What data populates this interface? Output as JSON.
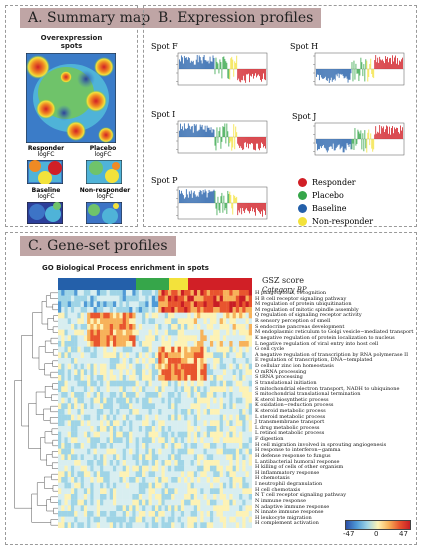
{
  "panel_a": {
    "header": "A. Summary map",
    "title_line1": "Overexpression",
    "title_line2": "spots",
    "small_maps": [
      {
        "label": "Responder",
        "sub": "logFC"
      },
      {
        "label": "Placebo",
        "sub": "logFC"
      },
      {
        "label": "Baseline",
        "sub": "logFC"
      },
      {
        "label": "Non-responder",
        "sub": "logFC"
      }
    ]
  },
  "panel_b": {
    "header": "B. Expression profiles",
    "spots": [
      "Spot F",
      "Spot H",
      "Spot I",
      "Spot J",
      "Spot P"
    ],
    "legend": [
      {
        "label": "Responder",
        "color": "#d11f26"
      },
      {
        "label": "Placebo",
        "color": "#36a64a"
      },
      {
        "label": "Baseline",
        "color": "#2460aa"
      },
      {
        "label": "Non-responder",
        "color": "#f3e23b"
      }
    ]
  },
  "panel_c": {
    "header": "C. Gene-set profiles",
    "subtitle": "GO Biological Process enrichment in spots",
    "gsz_title": "GSZ score",
    "gsz_sub": "Category BP",
    "colorbar": {
      "min": "-47",
      "mid": "0",
      "max": "47"
    },
    "gene_sets": [
      "H phagocytosis, recognition",
      "H B cell receptor signaling pathway",
      "M regulation of protein ubiquitination",
      "M regulation of mitotic spindle assembly",
      "Q regulation of signaling receptor activity",
      "R sensory perception of smell",
      "S endocrine pancreas development",
      "M endoplasmic reticulum to Golgi vesicle−mediated transport",
      "K negative regulation of protein localization to nucleus",
      "L negative regulation of viral entry into host cell",
      "G cell cycle",
      "A negative regulation of transcription by RNA polymerase II",
      "E regulation of transcription, DNA−templated",
      "D cellular zinc ion homeostasis",
      "O mRNA processing",
      "S tRNA processing",
      "S translational initiation",
      "S mitochondrial electron transport, NADH to ubiquinone",
      "S mitochondrial translational termination",
      "K sterol biosynthetic process",
      "K oxidation−reduction process",
      "K steroid metabolic process",
      "L steroid metabolic process",
      "J transmembrane transport",
      "L drug metabolic process",
      "L retinol metabolic process",
      "F digestion",
      "H cell migration involved in sprouting angiogenesis",
      "H response to interferon−gamma",
      "H defense response to fungus",
      "L antibacterial humoral response",
      "H killing of cells of other organism",
      "H inflammatory response",
      "H chemotaxis",
      "I neutrophil degranulation",
      "H cell chemotaxis",
      "N T cell receptor signaling pathway",
      "N immune response",
      "N adaptive immune response",
      "N innate immune response",
      "H leukocyte migration",
      "H complement activation"
    ]
  }
}
